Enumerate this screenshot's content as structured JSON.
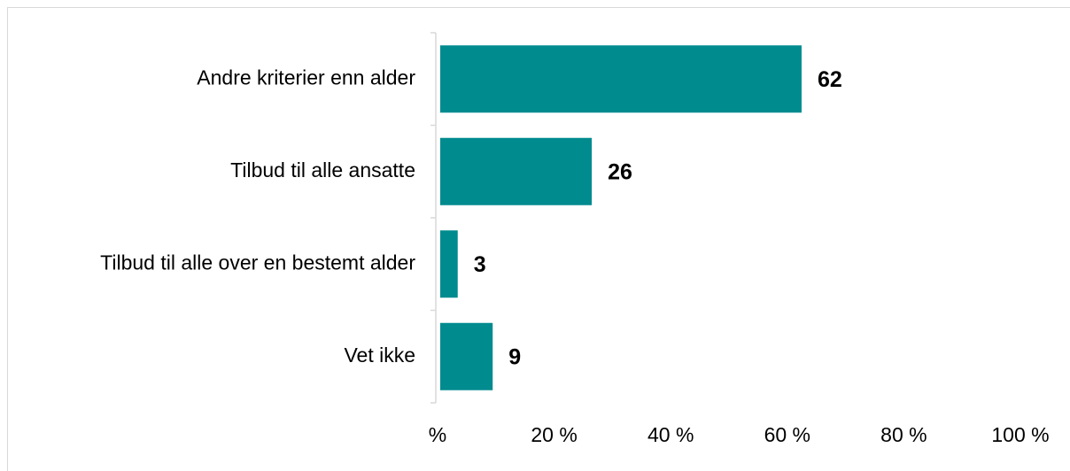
{
  "chart_data": {
    "type": "bar",
    "orientation": "horizontal",
    "categories": [
      "Andre kriterier enn alder",
      "Tilbud til alle ansatte",
      "Tilbud til alle over en bestemt alder",
      "Vet ikke"
    ],
    "values": [
      62,
      26,
      3,
      9
    ],
    "color": "#008b8f",
    "xlim": [
      0,
      100
    ],
    "xticks": [
      {
        "value": 0,
        "label": "%"
      },
      {
        "value": 20,
        "label": "20 %"
      },
      {
        "value": 40,
        "label": "40 %"
      },
      {
        "value": 60,
        "label": "60 %"
      },
      {
        "value": 80,
        "label": "80 %"
      },
      {
        "value": 100,
        "label": "100 %"
      }
    ],
    "grid": false
  }
}
